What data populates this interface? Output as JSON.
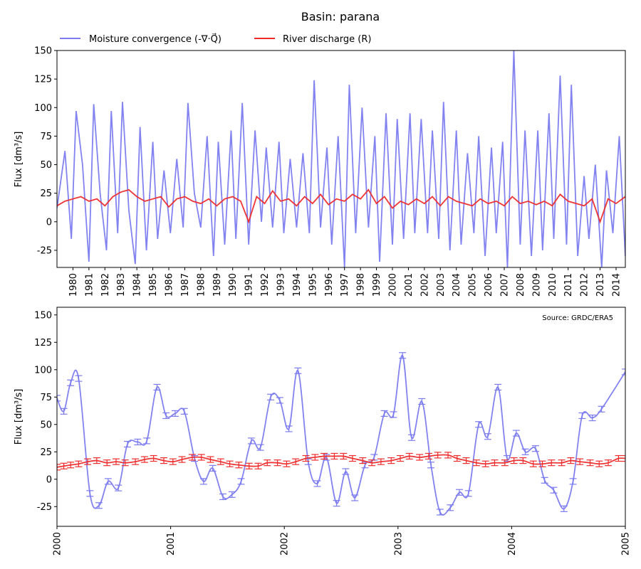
{
  "figure": {
    "title": "Basin: parana",
    "source": "Source: GRDC/ERA5",
    "ylabel": "Flux [dm³/s]"
  },
  "legend": {
    "moisture_label": "Moisture convergence (-∇·Q⃗)",
    "discharge_label": "River discharge (R)"
  },
  "colors": {
    "moisture": "#7b7bf0",
    "discharge": "#ee2b2b"
  },
  "chart_data": [
    {
      "type": "line",
      "panel": "top",
      "x_range": [
        1979.0,
        2014.58
      ],
      "ylim": [
        -40,
        150
      ],
      "yticks": [
        -25,
        0,
        25,
        50,
        75,
        100,
        125,
        150
      ],
      "xticks": [
        "1980",
        "1981",
        "1982",
        "1983",
        "1984",
        "1985",
        "1986",
        "1987",
        "1988",
        "1989",
        "1990",
        "1991",
        "1992",
        "1993",
        "1994",
        "1995",
        "1996",
        "1997",
        "1998",
        "1999",
        "2000",
        "2001",
        "2002",
        "2003",
        "2004",
        "2005",
        "2006",
        "2007",
        "2008",
        "2009",
        "2010",
        "2011",
        "2012",
        "2013",
        "2014"
      ],
      "series": [
        {
          "name": "Moisture convergence (-∇·Q⃗)",
          "x": [
            1979.0,
            1979.5,
            1979.9,
            1980.2,
            1980.6,
            1981.0,
            1981.3,
            1981.7,
            1982.1,
            1982.4,
            1982.8,
            1983.1,
            1983.5,
            1983.9,
            1984.2,
            1984.6,
            1985.0,
            1985.3,
            1985.7,
            1986.1,
            1986.5,
            1986.9,
            1987.2,
            1987.6,
            1988.0,
            1988.4,
            1988.8,
            1989.1,
            1989.5,
            1989.9,
            1990.2,
            1990.6,
            1991.0,
            1991.4,
            1991.8,
            1992.1,
            1992.5,
            1992.9,
            1993.2,
            1993.6,
            1994.0,
            1994.4,
            1994.8,
            1995.1,
            1995.5,
            1995.9,
            1996.2,
            1996.6,
            1997.0,
            1997.3,
            1997.7,
            1998.1,
            1998.5,
            1998.9,
            1999.2,
            1999.6,
            2000.0,
            2000.3,
            2000.7,
            2001.1,
            2001.4,
            2001.8,
            2002.2,
            2002.5,
            2002.9,
            2003.2,
            2003.6,
            2004.0,
            2004.3,
            2004.7,
            2005.1,
            2005.4,
            2005.8,
            2006.2,
            2006.5,
            2006.9,
            2007.2,
            2007.6,
            2008.0,
            2008.3,
            2008.7,
            2009.1,
            2009.4,
            2009.8,
            2010.1,
            2010.5,
            2010.9,
            2011.2,
            2011.6,
            2012.0,
            2012.3,
            2012.7,
            2013.1,
            2013.4,
            2013.8,
            2014.2,
            2014.58
          ],
          "values": [
            12,
            62,
            -15,
            97,
            50,
            -35,
            103,
            25,
            -25,
            97,
            -10,
            105,
            10,
            -37,
            83,
            -25,
            70,
            -15,
            45,
            -10,
            55,
            -5,
            104,
            25,
            -5,
            75,
            -30,
            70,
            -20,
            80,
            -15,
            104,
            -20,
            80,
            0,
            65,
            -5,
            70,
            -10,
            55,
            -5,
            60,
            -10,
            124,
            -5,
            65,
            -20,
            75,
            -40,
            120,
            -10,
            100,
            -5,
            75,
            -35,
            95,
            -20,
            90,
            -15,
            95,
            -10,
            90,
            -10,
            80,
            -15,
            105,
            -25,
            80,
            -20,
            60,
            -10,
            75,
            -30,
            65,
            -10,
            70,
            -40,
            150,
            -20,
            80,
            -30,
            80,
            -25,
            95,
            -15,
            128,
            -20,
            120,
            -30,
            40,
            -15,
            50,
            -40,
            45,
            -10,
            75,
            -30
          ],
          "color": "#7b7bf0"
        },
        {
          "name": "River discharge (R)",
          "x": [
            1979.0,
            1979.5,
            1980.0,
            1980.5,
            1981.0,
            1981.5,
            1982.0,
            1982.5,
            1983.0,
            1983.5,
            1984.0,
            1984.5,
            1985.0,
            1985.5,
            1986.0,
            1986.5,
            1987.0,
            1987.5,
            1988.0,
            1988.5,
            1989.0,
            1989.5,
            1990.0,
            1990.5,
            1991.0,
            1991.5,
            1992.0,
            1992.5,
            1993.0,
            1993.5,
            1994.0,
            1994.5,
            1995.0,
            1995.5,
            1996.0,
            1996.5,
            1997.0,
            1997.5,
            1998.0,
            1998.5,
            1999.0,
            1999.5,
            2000.0,
            2000.5,
            2001.0,
            2001.5,
            2002.0,
            2002.5,
            2003.0,
            2003.5,
            2004.0,
            2004.5,
            2005.0,
            2005.5,
            2006.0,
            2006.5,
            2007.0,
            2007.5,
            2008.0,
            2008.5,
            2009.0,
            2009.5,
            2010.0,
            2010.5,
            2011.0,
            2011.5,
            2012.0,
            2012.5,
            2013.0,
            2013.5,
            2014.0,
            2014.58
          ],
          "values": [
            14,
            18,
            20,
            22,
            18,
            20,
            14,
            22,
            26,
            28,
            22,
            18,
            20,
            22,
            13,
            20,
            22,
            18,
            16,
            20,
            14,
            20,
            22,
            18,
            0,
            22,
            16,
            27,
            18,
            20,
            14,
            22,
            16,
            24,
            15,
            20,
            18,
            24,
            20,
            28,
            16,
            22,
            12,
            18,
            15,
            20,
            16,
            22,
            14,
            22,
            18,
            16,
            14,
            20,
            16,
            18,
            14,
            22,
            16,
            18,
            15,
            18,
            14,
            24,
            18,
            16,
            14,
            20,
            0,
            20,
            16,
            22
          ],
          "color": "#ee2b2b"
        }
      ]
    },
    {
      "type": "line",
      "panel": "bottom",
      "x_range": [
        2000.0,
        2005.0
      ],
      "ylim": [
        -43,
        157
      ],
      "yticks": [
        -25,
        0,
        25,
        50,
        75,
        100,
        125,
        150
      ],
      "xticks": [
        "2000",
        "2001",
        "2002",
        "2003",
        "2004",
        "2005"
      ],
      "series": [
        {
          "name": "Moisture convergence (-∇·Q⃗)",
          "error_bars": true,
          "points": [
            [
              2000.0,
              74
            ],
            [
              2000.06,
              62
            ],
            [
              2000.12,
              88
            ],
            [
              2000.19,
              92
            ],
            [
              2000.29,
              -13
            ],
            [
              2000.37,
              -24
            ],
            [
              2000.45,
              -2
            ],
            [
              2000.54,
              -8
            ],
            [
              2000.62,
              32
            ],
            [
              2000.71,
              34
            ],
            [
              2000.79,
              35
            ],
            [
              2000.88,
              84
            ],
            [
              2000.96,
              58
            ],
            [
              2001.04,
              60
            ],
            [
              2001.12,
              62
            ],
            [
              2001.21,
              19
            ],
            [
              2001.29,
              -2
            ],
            [
              2001.37,
              10
            ],
            [
              2001.46,
              -16
            ],
            [
              2001.54,
              -14
            ],
            [
              2001.62,
              -2
            ],
            [
              2001.71,
              35
            ],
            [
              2001.79,
              29
            ],
            [
              2001.88,
              75
            ],
            [
              2001.96,
              72
            ],
            [
              2002.04,
              46
            ],
            [
              2002.12,
              99
            ],
            [
              2002.21,
              16
            ],
            [
              2002.29,
              -4
            ],
            [
              2002.37,
              20
            ],
            [
              2002.46,
              -22
            ],
            [
              2002.54,
              7
            ],
            [
              2002.62,
              -17
            ],
            [
              2002.71,
              13
            ],
            [
              2002.79,
              20
            ],
            [
              2002.88,
              60
            ],
            [
              2002.96,
              59
            ],
            [
              2003.04,
              113
            ],
            [
              2003.12,
              38
            ],
            [
              2003.21,
              71
            ],
            [
              2003.29,
              13
            ],
            [
              2003.37,
              -30
            ],
            [
              2003.46,
              -26
            ],
            [
              2003.54,
              -12
            ],
            [
              2003.62,
              -13
            ],
            [
              2003.71,
              50
            ],
            [
              2003.79,
              39
            ],
            [
              2003.88,
              84
            ],
            [
              2003.96,
              19
            ],
            [
              2004.04,
              42
            ],
            [
              2004.12,
              25
            ],
            [
              2004.21,
              28
            ],
            [
              2004.29,
              -1
            ],
            [
              2004.37,
              -10
            ],
            [
              2004.46,
              -27
            ],
            [
              2004.54,
              -2
            ],
            [
              2004.62,
              58
            ],
            [
              2004.71,
              56
            ],
            [
              2004.79,
              64
            ],
            [
              2005.0,
              98
            ]
          ],
          "color": "#7b7bf0"
        },
        {
          "name": "River discharge (R)",
          "error_bars": true,
          "points": [
            [
              2000.0,
              11
            ],
            [
              2000.06,
              12
            ],
            [
              2000.12,
              13
            ],
            [
              2000.19,
              14
            ],
            [
              2000.27,
              16
            ],
            [
              2000.35,
              17
            ],
            [
              2000.44,
              15
            ],
            [
              2000.52,
              16
            ],
            [
              2000.6,
              15
            ],
            [
              2000.69,
              16
            ],
            [
              2000.77,
              18
            ],
            [
              2000.85,
              19
            ],
            [
              2000.94,
              17
            ],
            [
              2001.02,
              16
            ],
            [
              2001.1,
              18
            ],
            [
              2001.19,
              20
            ],
            [
              2001.27,
              20
            ],
            [
              2001.35,
              18
            ],
            [
              2001.44,
              16
            ],
            [
              2001.52,
              14
            ],
            [
              2001.6,
              13
            ],
            [
              2001.69,
              12
            ],
            [
              2001.77,
              12
            ],
            [
              2001.85,
              15
            ],
            [
              2001.94,
              15
            ],
            [
              2002.02,
              14
            ],
            [
              2002.1,
              16
            ],
            [
              2002.19,
              19
            ],
            [
              2002.27,
              20
            ],
            [
              2002.35,
              21
            ],
            [
              2002.44,
              21
            ],
            [
              2002.52,
              21
            ],
            [
              2002.6,
              19
            ],
            [
              2002.69,
              17
            ],
            [
              2002.77,
              15
            ],
            [
              2002.85,
              16
            ],
            [
              2002.94,
              17
            ],
            [
              2003.02,
              19
            ],
            [
              2003.1,
              21
            ],
            [
              2003.19,
              20
            ],
            [
              2003.27,
              21
            ],
            [
              2003.35,
              22
            ],
            [
              2003.44,
              22
            ],
            [
              2003.52,
              19
            ],
            [
              2003.6,
              17
            ],
            [
              2003.69,
              15
            ],
            [
              2003.77,
              14
            ],
            [
              2003.85,
              15
            ],
            [
              2003.94,
              15
            ],
            [
              2004.02,
              17
            ],
            [
              2004.1,
              17
            ],
            [
              2004.19,
              14
            ],
            [
              2004.27,
              14
            ],
            [
              2004.35,
              15
            ],
            [
              2004.44,
              15
            ],
            [
              2004.52,
              17
            ],
            [
              2004.6,
              16
            ],
            [
              2004.69,
              15
            ],
            [
              2004.77,
              14
            ],
            [
              2004.85,
              15
            ],
            [
              2004.94,
              19
            ],
            [
              2005.0,
              19
            ]
          ],
          "color": "#ee2b2b"
        }
      ]
    }
  ]
}
